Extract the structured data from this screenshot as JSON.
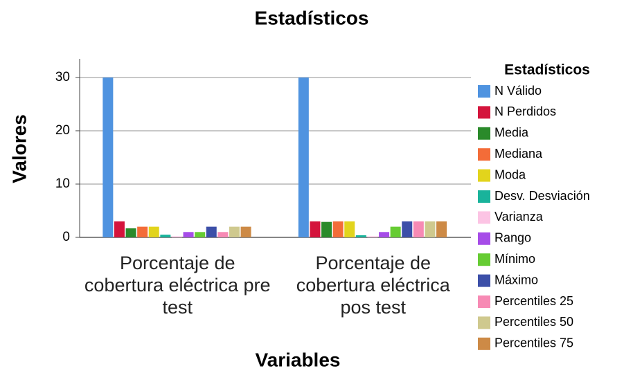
{
  "chart_data": {
    "type": "bar",
    "title": "Estadísticos",
    "xlabel": "Variables",
    "ylabel": "Valores",
    "legend_title": "Estadísticos",
    "legend": "right",
    "grid": true,
    "categories": [
      "Porcentaje de cobertura eléctrica pre test",
      "Porcentaje de cobertura eléctrica pos test"
    ],
    "ylim": [
      0,
      33.5
    ],
    "yticks": [
      0,
      10,
      20,
      30
    ],
    "series": [
      {
        "name": "N Válido",
        "color": "#4f93e0",
        "values": [
          30,
          30
        ]
      },
      {
        "name": "N Perdidos",
        "color": "#d4143c",
        "values": [
          3,
          3
        ]
      },
      {
        "name": "Media",
        "color": "#2a8a2a",
        "values": [
          1.7,
          2.9
        ]
      },
      {
        "name": "Mediana",
        "color": "#f36c38",
        "values": [
          2,
          3
        ]
      },
      {
        "name": "Moda",
        "color": "#e2d41c",
        "values": [
          2,
          3
        ]
      },
      {
        "name": "Desv. Desviación",
        "color": "#19b39b",
        "values": [
          0.5,
          0.4
        ]
      },
      {
        "name": "Varianza",
        "color": "#fcc4e4",
        "values": [
          0.2,
          0.2
        ]
      },
      {
        "name": "Rango",
        "color": "#a64ce8",
        "values": [
          1,
          1
        ]
      },
      {
        "name": "Mínimo",
        "color": "#66cc33",
        "values": [
          1,
          2
        ]
      },
      {
        "name": "Máximo",
        "color": "#3c4fa8",
        "values": [
          2,
          3
        ]
      },
      {
        "name": "Percentiles 25",
        "color": "#f78ab4",
        "values": [
          1,
          3
        ]
      },
      {
        "name": "Percentiles 50",
        "color": "#cfc98e",
        "values": [
          2,
          3
        ]
      },
      {
        "name": "Percentiles 75",
        "color": "#cd8a46",
        "values": [
          2,
          3
        ]
      }
    ]
  }
}
